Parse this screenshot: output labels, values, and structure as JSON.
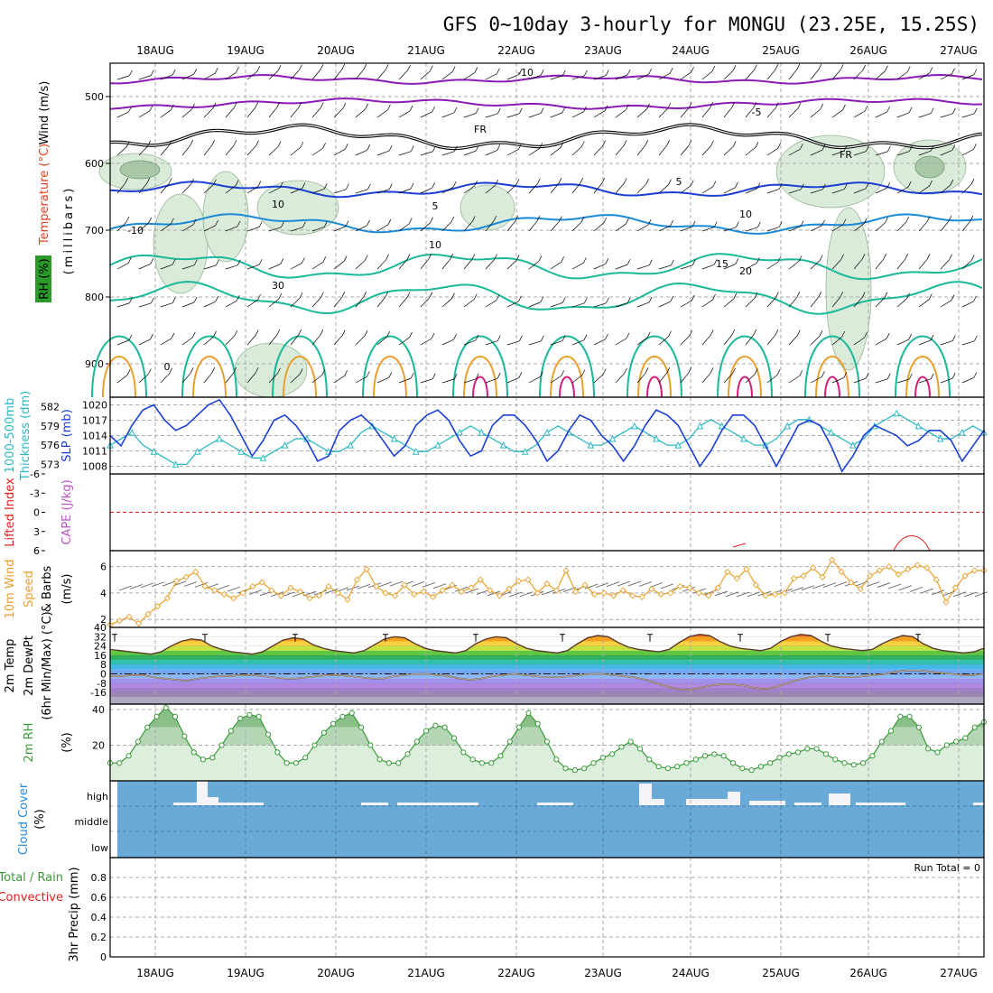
{
  "title": "GFS 0~10day 3-hourly for MONGU (23.25E, 15.25S)",
  "dates": [
    "18AUG",
    "19AUG",
    "20AUG",
    "21AUG",
    "22AUG",
    "23AUG",
    "24AUG",
    "25AUG",
    "26AUG",
    "27AUG"
  ],
  "run_total": "Run Total = 0",
  "colors": {
    "blue": "#1a3fd4",
    "cyan": "#2bb8c4",
    "orange": "#e8a02c",
    "green": "#3a9a3a",
    "cloud": "#6aaad8",
    "purple": "#8a1ab8",
    "lightblue": "#1a8ad8",
    "teal": "#1ab89a",
    "red": "#e02020"
  },
  "chart_data": [
    {
      "id": "upper",
      "type": "contour",
      "ylabels": [
        "Wind (m/s)",
        "Temperature (°C)",
        "RH (%)"
      ],
      "y_axis_label": "(millibars)",
      "y_ticks": [
        500,
        600,
        700,
        800,
        900
      ],
      "ylim": [
        450,
        950
      ],
      "contour_labels": [
        "-10",
        "-5",
        "FR",
        "FR",
        "5",
        "5",
        "10",
        "10",
        "-10",
        "15",
        "20",
        "10",
        "10",
        "30",
        "0"
      ]
    },
    {
      "id": "pressure",
      "type": "line",
      "ylabels": [
        "1000-500mb",
        "Thickness (dm)",
        "SLP (mb)"
      ],
      "left_ticks": [
        573,
        576,
        579,
        582
      ],
      "right_ticks": [
        1008,
        1011,
        1014,
        1017,
        1020
      ],
      "series": [
        {
          "key": "slp",
          "values": [
            1014,
            1012,
            1016,
            1019,
            1020,
            1017,
            1015,
            1016,
            1018,
            1020,
            1021,
            1018,
            1014,
            1010,
            1013,
            1017,
            1018,
            1016,
            1013,
            1009,
            1010,
            1015,
            1017,
            1018,
            1016,
            1013,
            1010,
            1012,
            1016,
            1018,
            1019,
            1017,
            1013,
            1010,
            1011,
            1016,
            1018,
            1018,
            1016,
            1013,
            1009,
            1011,
            1015,
            1018,
            1017,
            1014,
            1012,
            1009,
            1012,
            1016,
            1019,
            1018,
            1016,
            1012,
            1008,
            1011,
            1015,
            1018,
            1018,
            1016,
            1012,
            1008,
            1012,
            1016,
            1017,
            1016,
            1012,
            1007,
            1010,
            1014,
            1016,
            1015,
            1014,
            1012,
            1013,
            1015,
            1015,
            1013,
            1009,
            1012,
            1015
          ]
        },
        {
          "key": "thickness",
          "values": [
            576,
            577,
            578,
            576,
            575,
            574,
            573,
            573,
            575,
            576,
            577,
            576,
            575,
            574,
            574,
            575,
            576,
            577,
            577,
            576,
            575,
            575,
            576,
            578,
            579,
            578,
            577,
            576,
            575,
            575,
            576,
            577,
            578,
            579,
            578,
            577,
            576,
            575,
            575,
            576,
            578,
            579,
            578,
            577,
            576,
            576,
            577,
            578,
            579,
            578,
            577,
            576,
            576,
            577,
            579,
            580,
            579,
            578,
            577,
            576,
            576,
            577,
            579,
            580,
            580,
            579,
            578,
            577,
            576,
            577,
            579,
            580,
            581,
            580,
            579,
            578,
            577,
            577,
            578,
            579,
            578
          ]
        }
      ]
    },
    {
      "id": "instability",
      "type": "line",
      "ylabels": [
        "Lifted Index",
        "CAPE (J/kg)"
      ],
      "y_ticks": [
        "-6",
        "-3",
        "0",
        "3",
        "6"
      ],
      "ylim": [
        -6,
        6
      ]
    },
    {
      "id": "wind10m",
      "type": "line",
      "ylabels": [
        "10m Wind",
        "Speed",
        "& Barbs",
        "(m/s)"
      ],
      "y_ticks": [
        2,
        4,
        6
      ],
      "ylim": [
        1.4,
        7.2
      ],
      "series": [
        {
          "key": "speed",
          "values": [
            1.6,
            1.9,
            2.2,
            1.7,
            2.4,
            3.0,
            3.6,
            4.9,
            5.2,
            5.6,
            4.5,
            4.2,
            3.9,
            3.6,
            4.0,
            4.5,
            4.8,
            4.2,
            3.8,
            4.4,
            4.1,
            3.6,
            3.8,
            4.5,
            4.0,
            3.5,
            5.0,
            5.8,
            4.5,
            4.0,
            3.8,
            4.6,
            3.9,
            4.1,
            3.7,
            4.2,
            4.6,
            4.1,
            4.4,
            5.0,
            4.2,
            3.8,
            4.3,
            4.9,
            5.0,
            4.0,
            4.7,
            4.2,
            5.7,
            4.1,
            4.6,
            3.9,
            4.0,
            3.8,
            4.2,
            3.8,
            3.7,
            4.3,
            3.9,
            4.0,
            4.5,
            4.4,
            4.0,
            3.8,
            4.4,
            5.6,
            5.1,
            5.8,
            4.6,
            3.8,
            3.9,
            4.0,
            5.1,
            5.3,
            5.9,
            5.2,
            6.5,
            5.6,
            4.8,
            4.3,
            5.3,
            5.7,
            6.0,
            5.4,
            5.8,
            6.1,
            5.9,
            5.0,
            3.3,
            4.4,
            5.3,
            5.7,
            5.7
          ]
        }
      ]
    },
    {
      "id": "temp2m",
      "type": "area",
      "ylabels": [
        "2m Temp",
        "2m DewPt",
        "(6hr Min/Max) (°C)"
      ],
      "y_ticks": [
        40,
        32,
        24,
        16,
        8,
        0,
        -8,
        -16
      ],
      "ylim": [
        -26,
        40
      ],
      "series": [
        {
          "key": "temp",
          "values": [
            21,
            20,
            19,
            18,
            17,
            19,
            24,
            28,
            30,
            29,
            24,
            21,
            19,
            18,
            17,
            19,
            24,
            29,
            31,
            30,
            25,
            22,
            20,
            19,
            18,
            20,
            25,
            30,
            32,
            31,
            26,
            22,
            20,
            19,
            18,
            20,
            26,
            30,
            32,
            31,
            26,
            22,
            20,
            19,
            18,
            20,
            26,
            31,
            33,
            32,
            27,
            23,
            21,
            20,
            19,
            21,
            27,
            32,
            34,
            33,
            28,
            24,
            22,
            21,
            20,
            22,
            28,
            32,
            34,
            33,
            28,
            24,
            22,
            21,
            20,
            21,
            26,
            30,
            33,
            32,
            26,
            22,
            20,
            19,
            18,
            19,
            22
          ]
        },
        {
          "key": "dewpt",
          "values": [
            -2,
            -2,
            -1,
            -1,
            -3,
            -4,
            -5,
            -6,
            -4,
            -3,
            -2,
            -2,
            -1,
            -1,
            -2,
            -3,
            -4,
            -4,
            -3,
            -2,
            -1,
            -1,
            -2,
            -3,
            -4,
            -4,
            -2,
            -1,
            0,
            0,
            -1,
            -2,
            -4,
            -5,
            -4,
            -2,
            -1,
            0,
            -1,
            -2,
            -3,
            -3,
            -2,
            -1,
            0,
            0,
            -1,
            -2,
            -3,
            -5,
            -8,
            -11,
            -13,
            -14,
            -12,
            -10,
            -9,
            -9,
            -10,
            -12,
            -13,
            -11,
            -8,
            -5,
            -3,
            -2,
            -2,
            -3,
            -3,
            -2,
            -1,
            0,
            2,
            3,
            3,
            2,
            1,
            0,
            -1,
            -1,
            0
          ]
        }
      ]
    },
    {
      "id": "rh2m",
      "type": "area",
      "ylabels": [
        "2m RH",
        "(%)"
      ],
      "y_ticks": [
        20,
        40
      ],
      "ylim": [
        0,
        43
      ],
      "series": [
        {
          "key": "rh",
          "values": [
            10,
            10,
            14,
            22,
            30,
            36,
            41,
            36,
            25,
            16,
            12,
            13,
            20,
            28,
            35,
            37,
            36,
            26,
            16,
            10,
            10,
            13,
            20,
            27,
            32,
            36,
            38,
            30,
            20,
            12,
            10,
            10,
            15,
            22,
            28,
            31,
            30,
            24,
            16,
            12,
            10,
            10,
            14,
            22,
            30,
            38,
            32,
            22,
            12,
            7,
            6,
            7,
            10,
            13,
            15,
            19,
            22,
            18,
            12,
            8,
            7,
            8,
            10,
            12,
            14,
            15,
            14,
            10,
            7,
            6,
            8,
            10,
            13,
            15,
            16,
            18,
            18,
            15,
            12,
            10,
            9,
            10,
            14,
            22,
            28,
            36,
            36,
            30,
            18,
            16,
            20,
            22,
            24,
            30,
            33
          ]
        }
      ]
    },
    {
      "id": "cloud",
      "type": "bar",
      "ylabels": [
        "Cloud Cover",
        "(%)"
      ],
      "y_ticks": [
        "high",
        "middle",
        "low"
      ]
    },
    {
      "id": "precip",
      "type": "bar",
      "ylabels": [
        "Total / Rain",
        "Convective",
        "3hr Precip (mm)"
      ],
      "y_ticks": [
        "0",
        "0.2",
        "0.4",
        "0.6",
        "0.8"
      ],
      "ylim": [
        0,
        1
      ]
    }
  ]
}
